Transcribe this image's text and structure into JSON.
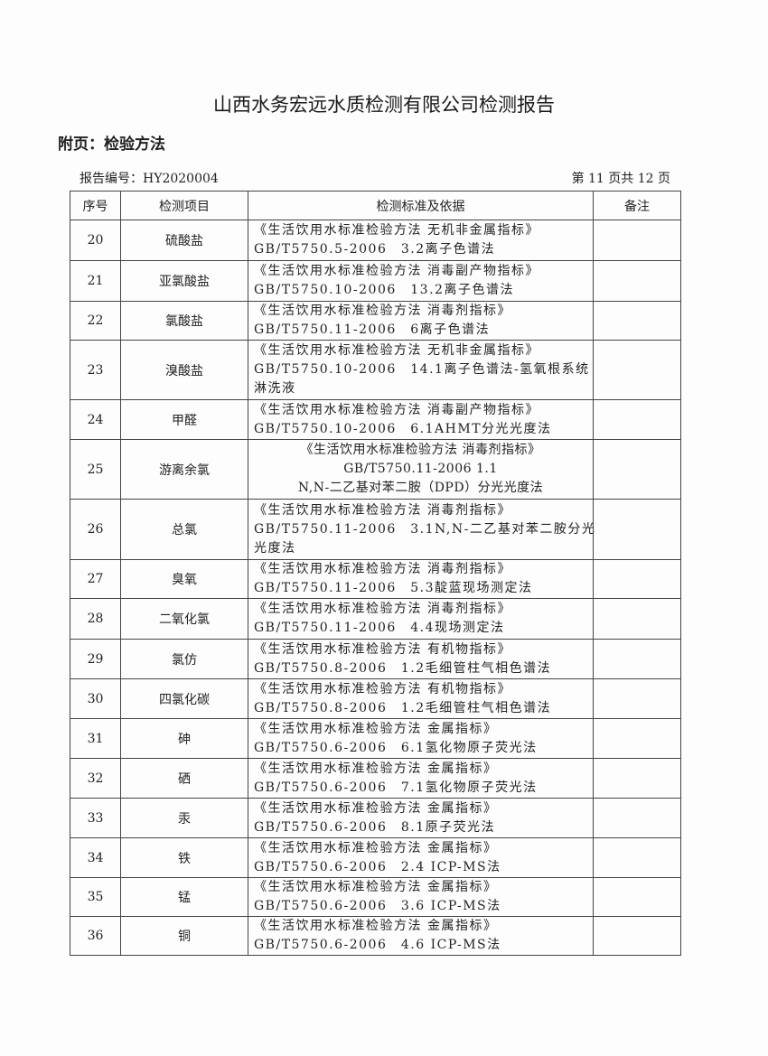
{
  "title": "山西水务宏远水质检测有限公司检测报告",
  "subtitle": "附页：检验方法",
  "report_no": "报告编号：HY2020004",
  "page_info": "第 11 页共 12 页",
  "headers": [
    "序号",
    "检测项目",
    "检测标准及依据",
    "备注"
  ],
  "rows": [
    {
      "no": "20",
      "item": "硫酸盐",
      "lines": [
        "《生活饮用水标准检验方法 无机非金属指标》",
        "GB/T5750.5-2006　3.2离子色谱法"
      ],
      "note": ""
    },
    {
      "no": "21",
      "item": "亚氯酸盐",
      "lines": [
        "《生活饮用水标准检验方法 消毒副产物指标》",
        "GB/T5750.10-2006　13.2离子色谱法"
      ],
      "note": ""
    },
    {
      "no": "22",
      "item": "氯酸盐",
      "lines": [
        "《生活饮用水标准检验方法 消毒剂指标》",
        "GB/T5750.11-2006　6离子色谱法"
      ],
      "note": ""
    },
    {
      "no": "23",
      "item": "溴酸盐",
      "lines": [
        "《生活饮用水标准检验方法 无机非金属指标》",
        "GB/T5750.10-2006　14.1离子色谱法-氢氧根系统",
        "淋洗液"
      ],
      "note": ""
    },
    {
      "no": "24",
      "item": "甲醛",
      "lines": [
        "《生活饮用水标准检验方法 消毒副产物指标》",
        "GB/T5750.10-2006　6.1AHMT分光光度法"
      ],
      "note": ""
    },
    {
      "no": "25",
      "item": "游离余氯",
      "lines": [
        "《生活饮用水标准检验方法 消毒剂指标》",
        "GB/T5750.11-2006 1.1",
        "N,N-二乙基对苯二胺（DPD）分光光度法"
      ],
      "note": "",
      "centered": true
    },
    {
      "no": "26",
      "item": "总氯",
      "lines": [
        "《生活饮用水标准检验方法 消毒剂指标》",
        "GB/T5750.11-2006　3.1N,N-二乙基对苯二胺分光",
        "光度法"
      ],
      "note": ""
    },
    {
      "no": "27",
      "item": "臭氧",
      "lines": [
        "《生活饮用水标准检验方法 消毒剂指标》",
        "GB/T5750.11-2006　5.3靛蓝现场测定法"
      ],
      "note": ""
    },
    {
      "no": "28",
      "item": "二氧化氯",
      "lines": [
        "《生活饮用水标准检验方法 消毒剂指标》",
        "GB/T5750.11-2006　4.4现场测定法"
      ],
      "note": ""
    },
    {
      "no": "29",
      "item": "氯仿",
      "lines": [
        "《生活饮用水标准检验方法 有机物指标》",
        "GB/T5750.8-2006　1.2毛细管柱气相色谱法"
      ],
      "note": ""
    },
    {
      "no": "30",
      "item": "四氯化碳",
      "lines": [
        "《生活饮用水标准检验方法 有机物指标》",
        "GB/T5750.8-2006　1.2毛细管柱气相色谱法"
      ],
      "note": ""
    },
    {
      "no": "31",
      "item": "砷",
      "lines": [
        "《生活饮用水标准检验方法 金属指标》",
        "GB/T5750.6-2006　6.1氢化物原子荧光法"
      ],
      "note": ""
    },
    {
      "no": "32",
      "item": "硒",
      "lines": [
        "《生活饮用水标准检验方法 金属指标》",
        "GB/T5750.6-2006　7.1氢化物原子荧光法"
      ],
      "note": ""
    },
    {
      "no": "33",
      "item": "汞",
      "lines": [
        "《生活饮用水标准检验方法 金属指标》",
        "GB/T5750.6-2006　8.1原子荧光法"
      ],
      "note": ""
    },
    {
      "no": "34",
      "item": "铁",
      "lines": [
        "《生活饮用水标准检验方法 金属指标》",
        "GB/T5750.6-2006　2.4 ICP-MS法"
      ],
      "note": ""
    },
    {
      "no": "35",
      "item": "锰",
      "lines": [
        "《生活饮用水标准检验方法 金属指标》",
        "GB/T5750.6-2006　3.6 ICP-MS法"
      ],
      "note": ""
    },
    {
      "no": "36",
      "item": "铜",
      "lines": [
        "《生活饮用水标准检验方法 金属指标》",
        "GB/T5750.6-2006　4.6 ICP-MS法"
      ],
      "note": ""
    }
  ]
}
